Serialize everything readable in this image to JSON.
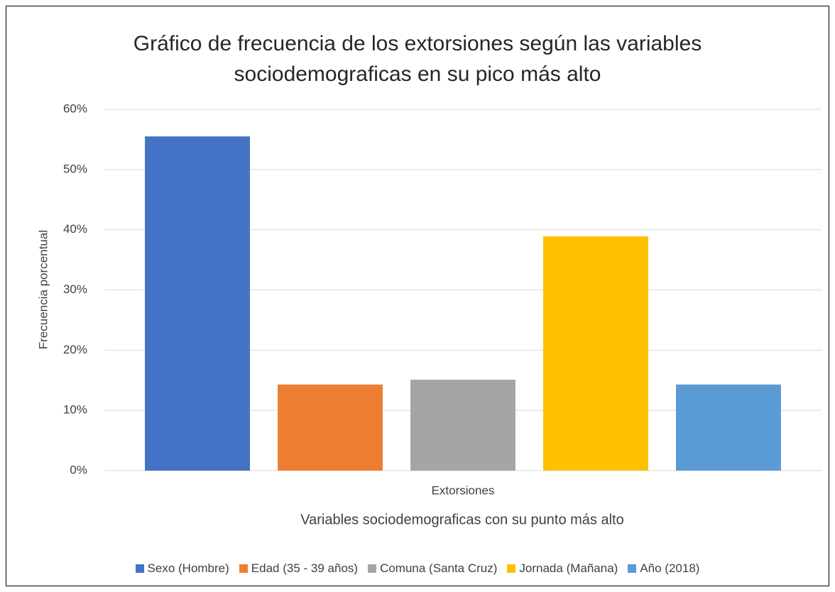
{
  "chart_data": {
    "type": "bar",
    "title": "Gráfico de frecuencia de los extorsiones según las variables sociodemograficas en su pico más alto",
    "x_label": "Variables sociodemograficas con su punto más alto",
    "y_label": "Frecuencia porcentual",
    "categories": [
      "Extorsiones"
    ],
    "series": [
      {
        "name": "Sexo (Hombre)",
        "color": "#4472c4",
        "values": [
          55.5
        ]
      },
      {
        "name": "Edad (35 - 39 años)",
        "color": "#ed7d31",
        "values": [
          14.3
        ]
      },
      {
        "name": "Comuna (Santa Cruz)",
        "color": "#a5a5a5",
        "values": [
          15.1
        ]
      },
      {
        "name": "Jornada (Mañana)",
        "color": "#ffc000",
        "values": [
          38.9
        ]
      },
      {
        "name": "Año (2018)",
        "color": "#5b9bd5",
        "values": [
          14.3
        ]
      }
    ],
    "ylim": [
      0,
      60
    ],
    "yticks": [
      {
        "value": 0,
        "label": "0%"
      },
      {
        "value": 10,
        "label": "10%"
      },
      {
        "value": 20,
        "label": "20%"
      },
      {
        "value": 30,
        "label": "30%"
      },
      {
        "value": 40,
        "label": "40%"
      },
      {
        "value": 50,
        "label": "50%"
      },
      {
        "value": 60,
        "label": "60%"
      }
    ],
    "grid": true,
    "legend": "bottom"
  }
}
